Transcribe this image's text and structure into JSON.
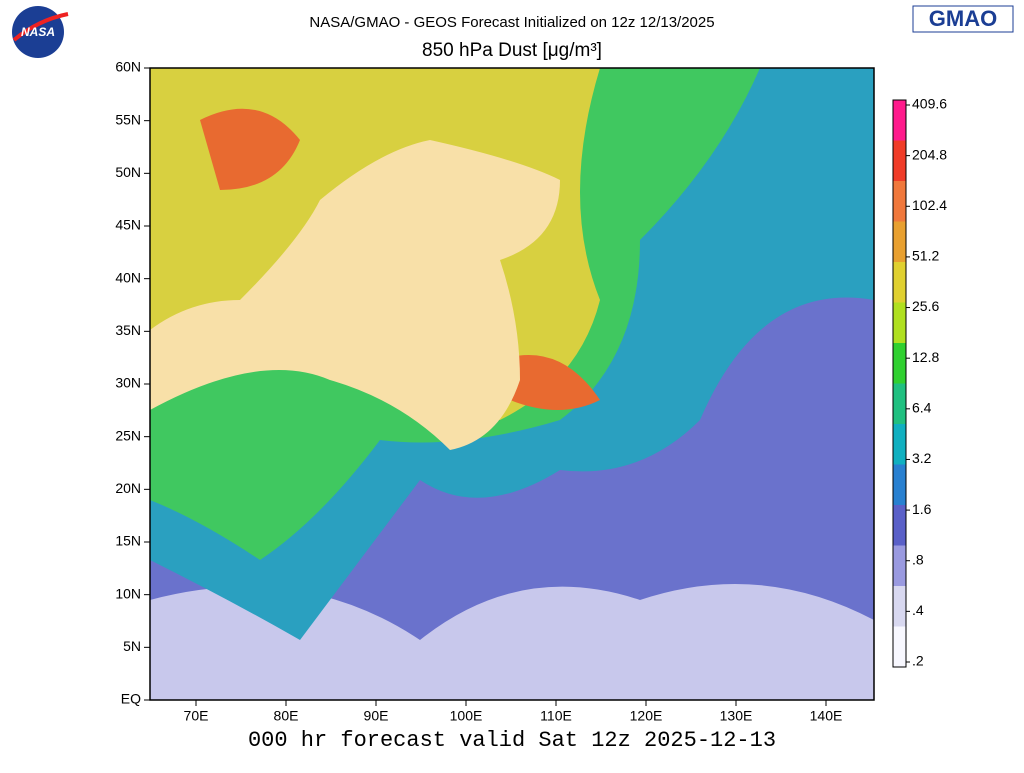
{
  "header": {
    "line1": "NASA/GMAO - GEOS Forecast Initialized on 12z 12/13/2025",
    "title": "850 hPa Dust [μg/m³]"
  },
  "logos": {
    "left": "NASA",
    "right": "GMAO"
  },
  "map": {
    "lat_labels": [
      "60N",
      "55N",
      "50N",
      "45N",
      "40N",
      "35N",
      "30N",
      "25N",
      "20N",
      "15N",
      "10N",
      "5N",
      "EQ"
    ],
    "lon_labels": [
      "70E",
      "80E",
      "90E",
      "100E",
      "110E",
      "120E",
      "130E",
      "140E"
    ]
  },
  "colorbar": {
    "labels": [
      "409.6",
      "204.8",
      "102.4",
      "51.2",
      "25.6",
      "12.8",
      "6.4",
      "3.2",
      "1.6",
      ".8",
      ".4",
      ".2"
    ],
    "colors": [
      "#ff1a8c",
      "#f03c28",
      "#f0783c",
      "#e8a030",
      "#e0d030",
      "#b0e020",
      "#30d030",
      "#20c080",
      "#10b0c0",
      "#2880d0",
      "#5a60c8",
      "#9a9ae0",
      "#d8d8f0",
      "#f8f8ff"
    ]
  },
  "footer": "000 hr forecast valid Sat 12z 2025-12-13"
}
